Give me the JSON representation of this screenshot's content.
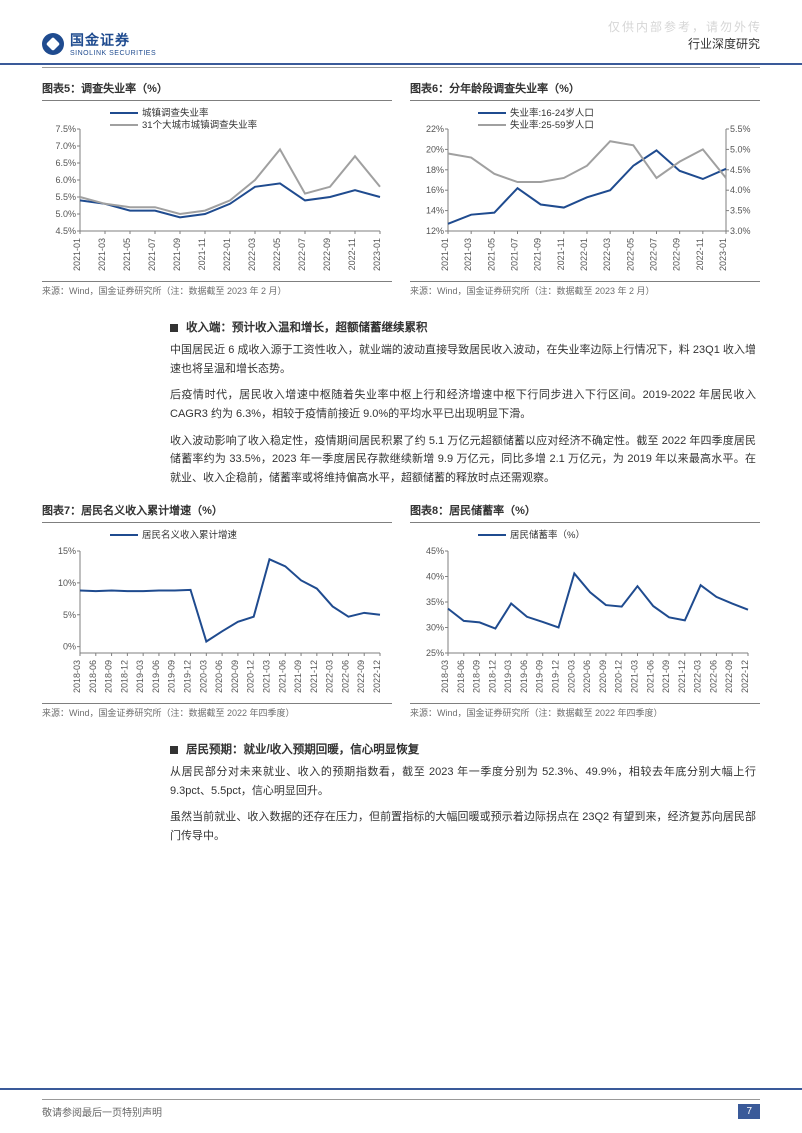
{
  "watermark": "仅供内部参考，请勿外传",
  "header": {
    "logo_cn": "国金证券",
    "logo_en": "SINOLINK SECURITIES",
    "category": "行业深度研究"
  },
  "chart5": {
    "title": "图表5：调查失业率（%）",
    "type": "line",
    "series1_name": "城镇调查失业率",
    "series2_name": "31个大城市城镇调查失业率",
    "color_s1": "#1f4b8f",
    "color_s2": "#a0a0a0",
    "x_labels": [
      "2021-01",
      "2021-03",
      "2021-05",
      "2021-07",
      "2021-09",
      "2021-11",
      "2022-01",
      "2022-03",
      "2022-05",
      "2022-07",
      "2022-09",
      "2022-11",
      "2023-01"
    ],
    "y_ticks": [
      4.5,
      5.0,
      5.5,
      6.0,
      6.5,
      7.0,
      7.5
    ],
    "ylim": [
      4.5,
      7.5
    ],
    "s1_values": [
      5.4,
      5.3,
      5.1,
      5.1,
      4.9,
      5.0,
      5.3,
      5.8,
      5.9,
      5.4,
      5.5,
      5.7,
      5.5
    ],
    "s2_values": [
      5.5,
      5.3,
      5.2,
      5.2,
      5.0,
      5.1,
      5.4,
      6.0,
      6.9,
      5.6,
      5.8,
      6.7,
      5.8
    ],
    "source": "来源：Wind，国金证券研究所（注：数据截至 2023 年 2 月）"
  },
  "chart6": {
    "title": "图表6：分年龄段调查失业率（%）",
    "type": "line-dual-axis",
    "series1_name": "失业率:16-24岁人口",
    "series2_name": "失业率:25-59岁人口",
    "color_s1": "#1f4b8f",
    "color_s2": "#a0a0a0",
    "x_labels": [
      "2021-01",
      "2021-03",
      "2021-05",
      "2021-07",
      "2021-09",
      "2021-11",
      "2022-01",
      "2022-03",
      "2022-05",
      "2022-07",
      "2022-09",
      "2022-11",
      "2023-01"
    ],
    "y_ticks_left": [
      12,
      14,
      16,
      18,
      20,
      22
    ],
    "y_ticks_right": [
      3.0,
      3.5,
      4.0,
      4.5,
      5.0,
      5.5
    ],
    "ylim_left": [
      12,
      22
    ],
    "ylim_right": [
      3.0,
      5.5
    ],
    "s1_values": [
      12.7,
      13.6,
      13.8,
      16.2,
      14.6,
      14.3,
      15.3,
      16.0,
      18.4,
      19.9,
      17.9,
      17.1,
      18.1
    ],
    "s2_values": [
      4.9,
      4.8,
      4.4,
      4.2,
      4.2,
      4.3,
      4.6,
      5.2,
      5.1,
      4.3,
      4.7,
      5.0,
      4.3
    ],
    "source": "来源：Wind，国金证券研究所（注：数据截至 2023 年 2 月）"
  },
  "chart7": {
    "title": "图表7：居民名义收入累计增速（%）",
    "type": "line",
    "series1_name": "居民名义收入累计增速",
    "color_s1": "#1f4b8f",
    "x_labels": [
      "2018-03",
      "2018-06",
      "2018-09",
      "2018-12",
      "2019-03",
      "2019-06",
      "2019-09",
      "2019-12",
      "2020-03",
      "2020-06",
      "2020-09",
      "2020-12",
      "2021-03",
      "2021-06",
      "2021-09",
      "2021-12",
      "2022-03",
      "2022-06",
      "2022-09",
      "2022-12"
    ],
    "y_ticks": [
      0,
      5,
      10,
      15
    ],
    "ylim": [
      -1,
      15
    ],
    "s1_values": [
      8.8,
      8.7,
      8.8,
      8.7,
      8.7,
      8.8,
      8.8,
      8.9,
      0.8,
      2.4,
      3.9,
      4.7,
      13.7,
      12.6,
      10.4,
      9.1,
      6.3,
      4.7,
      5.3,
      5.0
    ],
    "source": "来源：Wind，国金证券研究所（注：数据截至 2022 年四季度）"
  },
  "chart8": {
    "title": "图表8：居民储蓄率（%）",
    "type": "line",
    "series1_name": "居民储蓄率（%）",
    "color_s1": "#1f4b8f",
    "x_labels": [
      "2018-03",
      "2018-06",
      "2018-09",
      "2018-12",
      "2019-03",
      "2019-06",
      "2019-09",
      "2019-12",
      "2020-03",
      "2020-06",
      "2020-09",
      "2020-12",
      "2021-03",
      "2021-06",
      "2021-09",
      "2021-12",
      "2022-03",
      "2022-06",
      "2022-09",
      "2022-12"
    ],
    "y_ticks": [
      25,
      30,
      35,
      40,
      45
    ],
    "ylim": [
      25,
      45
    ],
    "s1_values": [
      33.7,
      31.3,
      31.0,
      29.8,
      34.7,
      32.1,
      31.1,
      30.0,
      40.6,
      36.9,
      34.4,
      34.1,
      38.1,
      34.2,
      32.0,
      31.4,
      38.3,
      36.0,
      34.7,
      33.5
    ],
    "source": "来源：Wind，国金证券研究所（注：数据截至 2022 年四季度）"
  },
  "text": {
    "section1_head": "收入端：预计收入温和增长，超额储蓄继续累积",
    "p1": "中国居民近 6 成收入源于工资性收入，就业端的波动直接导致居民收入波动，在失业率边际上行情况下，料 23Q1 收入增速也将呈温和增长态势。",
    "p2": "后疫情时代，居民收入增速中枢随着失业率中枢上行和经济增速中枢下行同步进入下行区间。2019-2022 年居民收入 CAGR3 约为 6.3%，相较于疫情前接近 9.0%的平均水平已出现明显下滑。",
    "p3": "收入波动影响了收入稳定性，疫情期间居民积累了约 5.1 万亿元超额储蓄以应对经济不确定性。截至 2022 年四季度居民储蓄率约为 33.5%，2023 年一季度居民存款继续新增 9.9 万亿元，同比多增 2.1 万亿元，为 2019 年以来最高水平。在就业、收入企稳前，储蓄率或将维持偏高水平，超额储蓄的释放时点还需观察。",
    "section2_head": "居民预期：就业/收入预期回暖，信心明显恢复",
    "p4": "从居民部分对未来就业、收入的预期指数看，截至 2023 年一季度分别为 52.3%、49.9%，相较去年底分别大幅上行 9.3pct、5.5pct，信心明显回升。",
    "p5": "虽然当前就业、收入数据的还存在压力，但前置指标的大幅回暖或预示着边际拐点在 23Q2 有望到来，经济复苏向居民部门传导中。"
  },
  "footer": {
    "note": "敬请参阅最后一页特别声明",
    "page": "7"
  },
  "style": {
    "brand_blue": "#1f4b8f",
    "grid_color": "#cccccc",
    "background": "#ffffff"
  }
}
